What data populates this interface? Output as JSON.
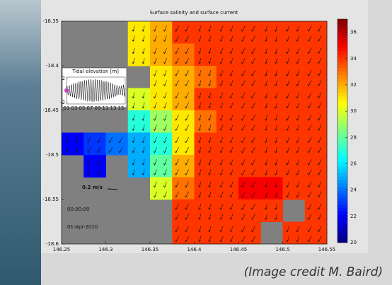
{
  "chart_data": {
    "type": "heatmap",
    "title": "Surface salinity and surface current",
    "xlim": [
      146.25,
      146.55
    ],
    "xticks": [
      146.25,
      146.3,
      146.35,
      146.4,
      146.45,
      146.5,
      146.55
    ],
    "ylim": [
      -18.6,
      -18.35
    ],
    "yticks": [
      -18.35,
      -18.4,
      -18.45,
      -18.5,
      -18.55,
      -18.6
    ],
    "clim": [
      20,
      37
    ],
    "cticks": [
      20,
      22,
      24,
      26,
      28,
      30,
      32,
      34,
      36
    ],
    "z": [
      [
        null,
        null,
        null,
        31,
        32,
        34,
        34,
        34,
        34,
        34,
        34,
        34
      ],
      [
        null,
        null,
        null,
        31,
        32,
        33,
        34,
        34,
        34,
        34,
        34,
        34
      ],
      [
        null,
        null,
        null,
        null,
        31,
        32,
        33,
        34,
        34,
        34,
        34,
        34
      ],
      [
        null,
        null,
        null,
        30,
        31,
        32,
        34,
        34,
        34,
        34,
        34,
        34
      ],
      [
        null,
        null,
        null,
        27,
        29,
        31,
        33,
        34,
        34,
        34,
        34,
        34
      ],
      [
        22,
        23,
        24,
        25,
        27,
        31,
        34,
        34,
        34,
        34,
        34,
        34
      ],
      [
        null,
        22,
        null,
        25,
        28,
        32,
        34,
        34,
        34,
        34,
        34,
        34
      ],
      [
        null,
        null,
        null,
        null,
        30,
        33,
        34,
        34,
        35,
        35,
        34,
        34
      ],
      [
        null,
        null,
        null,
        null,
        null,
        34,
        34,
        34,
        34,
        34,
        null,
        34
      ],
      [
        null,
        null,
        null,
        null,
        null,
        34,
        34,
        34,
        34,
        null,
        34,
        34
      ]
    ],
    "inset": {
      "title": "Tidal elevation [m]",
      "yticks": [
        2,
        -2
      ],
      "xticks": [
        "01",
        "03",
        "05",
        "07",
        "09",
        "11",
        "13",
        "15"
      ]
    },
    "scale_label": "0.2 m/s",
    "time": "00:00:00",
    "date": "01-Apr-2010"
  },
  "credit": "(Image credit M. Baird)"
}
